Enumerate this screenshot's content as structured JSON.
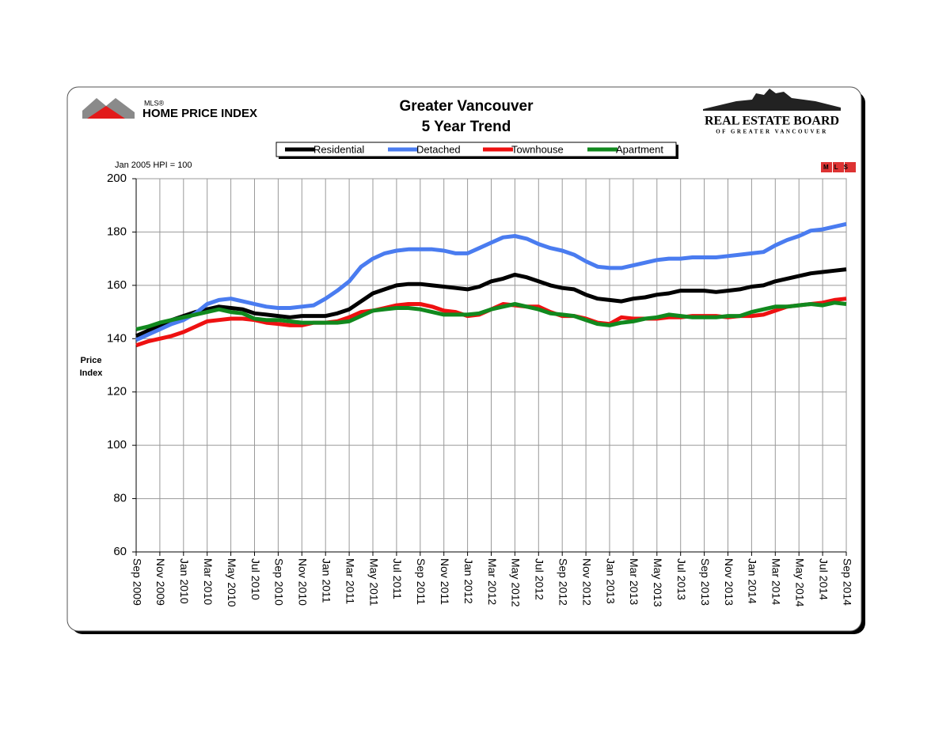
{
  "branding": {
    "left_small": "MLS®",
    "left": "HOME PRICE INDEX",
    "right": "REAL ESTATE BOARD",
    "right_sub": "OF GREATER VANCOUVER",
    "badge": "MLS"
  },
  "chart_data": {
    "type": "line",
    "title": "Greater Vancouver",
    "subtitle": "5 Year Trend",
    "note": "Jan 2005 HPI = 100",
    "y_label": "Price Index",
    "categories": [
      "Sep 2009",
      null,
      "Nov 2009",
      null,
      "Jan 2010",
      null,
      "Mar 2010",
      null,
      "May 2010",
      null,
      "Jul 2010",
      null,
      "Sep 2010",
      null,
      "Nov 2010",
      null,
      "Jan 2011",
      null,
      "Mar 2011",
      null,
      "May 2011",
      null,
      "Jul 2011",
      null,
      "Sep 2011",
      null,
      "Nov 2011",
      null,
      "Jan 2012",
      null,
      "Mar 2012",
      null,
      "May 2012",
      null,
      "Jul 2012",
      null,
      "Sep 2012",
      null,
      "Nov 2012",
      null,
      "Jan 2013",
      null,
      "Mar 2013",
      null,
      "May 2013",
      null,
      "Jul 2013",
      null,
      "Sep 2013",
      null,
      "Nov 2013",
      null,
      "Jan 2014",
      null,
      "Mar 2014",
      null,
      "May 2014",
      null,
      "Jul 2014",
      null,
      "Sep 2014"
    ],
    "series": [
      {
        "name": "Residential",
        "color": "#000000",
        "values": [
          141,
          143,
          145,
          147,
          148.5,
          150,
          151,
          152,
          151.5,
          151,
          149.5,
          149,
          148.5,
          148,
          148.5,
          148.5,
          148.5,
          149.5,
          151,
          154,
          157,
          158.5,
          160,
          160.5,
          160.5,
          160,
          159.5,
          159,
          158.5,
          159.5,
          161.5,
          162.5,
          164,
          163,
          161.5,
          160,
          159,
          158.5,
          156.5,
          155,
          154.5,
          154,
          155,
          155.5,
          156.5,
          157,
          158,
          158,
          158,
          157.5,
          158,
          158.5,
          159.5,
          160,
          161.5,
          162.5,
          163.5,
          164.5,
          165,
          165.5,
          166
        ]
      },
      {
        "name": "Detached",
        "color": "#4a7cf0",
        "values": [
          139.5,
          141.5,
          143.5,
          145.5,
          147,
          149.5,
          153,
          154.5,
          155,
          154,
          153,
          152,
          151.5,
          151.5,
          152,
          152.5,
          155,
          158,
          161.5,
          167,
          170,
          172,
          173,
          173.5,
          173.5,
          173.5,
          173,
          172,
          172,
          174,
          176,
          178,
          178.5,
          177.5,
          175.5,
          174,
          173,
          171.5,
          169,
          167,
          166.5,
          166.5,
          167.5,
          168.5,
          169.5,
          170,
          170,
          170.5,
          170.5,
          170.5,
          171,
          171.5,
          172,
          172.5,
          175,
          177,
          178.5,
          180.5,
          181,
          182,
          183
        ]
      },
      {
        "name": "Townhouse",
        "color": "#ee1111",
        "values": [
          137.5,
          139,
          140,
          141,
          142.5,
          144.5,
          146.5,
          147,
          147.5,
          147.5,
          147,
          146,
          145.5,
          145,
          145,
          146,
          146,
          146.5,
          148,
          150,
          150.5,
          151.5,
          152.5,
          153,
          153,
          152,
          150.5,
          150,
          148.5,
          149,
          151,
          153,
          152.5,
          152,
          152,
          150,
          148.5,
          148.5,
          147.5,
          146,
          145.5,
          148,
          147.5,
          147.5,
          147.5,
          148,
          148,
          148.5,
          148.5,
          148.5,
          148,
          148.5,
          148.5,
          149,
          150.5,
          152,
          152.5,
          153,
          153.5,
          154.5,
          155
        ]
      },
      {
        "name": "Apartment",
        "color": "#11891e",
        "values": [
          143.5,
          144.5,
          146,
          147,
          148,
          149,
          150,
          151,
          150,
          149.5,
          147.5,
          147,
          147,
          146.5,
          146,
          146,
          146,
          146,
          146.5,
          148.5,
          150.5,
          151,
          151.5,
          151.5,
          151,
          150,
          149,
          149,
          149,
          149.5,
          151,
          152,
          153,
          152,
          151,
          149.5,
          149,
          148.5,
          147,
          145.5,
          145,
          146,
          146.5,
          147.5,
          148,
          149,
          148.5,
          148,
          148,
          148,
          148.5,
          148.5,
          150,
          151,
          152,
          152,
          152.5,
          153,
          152.5,
          153.5,
          153
        ]
      }
    ],
    "ylim": [
      60,
      200
    ],
    "yticks": [
      60,
      80,
      100,
      120,
      140,
      160,
      180,
      200
    ],
    "grid": true,
    "legend": "top"
  }
}
